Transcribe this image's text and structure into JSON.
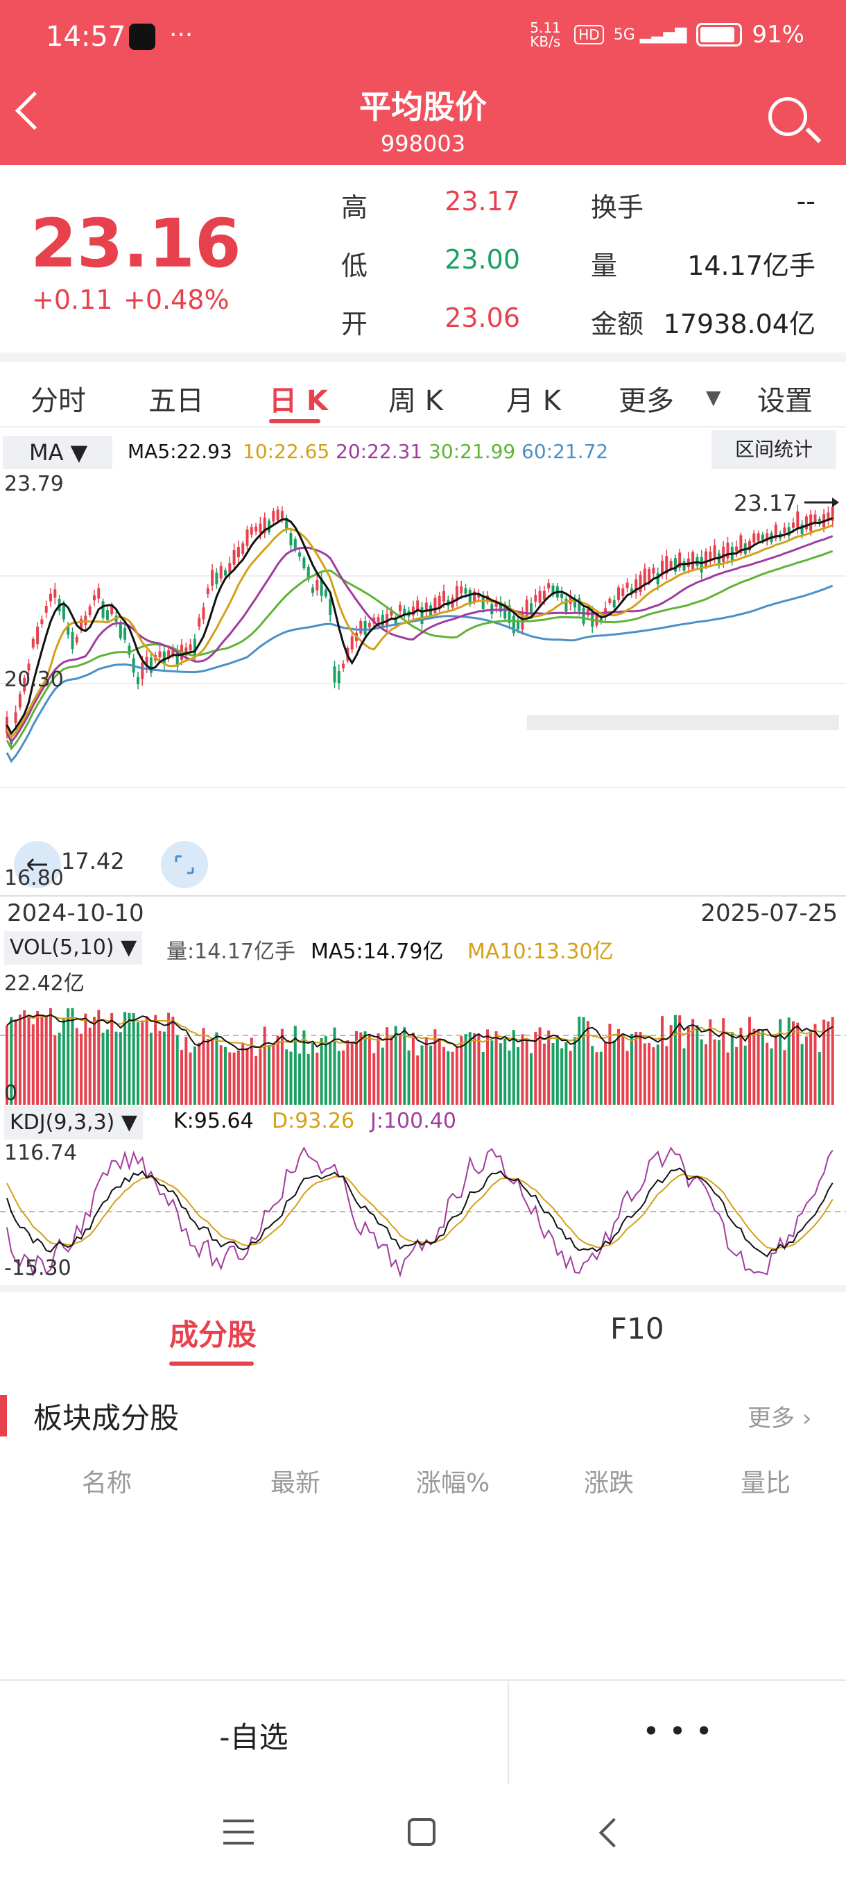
{
  "status": {
    "time": "14:57",
    "net": "5.11 KB/s",
    "hd": "HD",
    "signal": "5G",
    "battery": "91%"
  },
  "header": {
    "title": "平均股价",
    "code": "998003"
  },
  "quote": {
    "price": "23.16",
    "change": "+0.11",
    "change_pct": "+0.48%",
    "labels": {
      "high": "高",
      "low": "低",
      "open": "开",
      "turnover": "换手",
      "volume": "量",
      "amount": "金额"
    },
    "high": "23.17",
    "low": "23.00",
    "open": "23.06",
    "turnover": "--",
    "volume": "14.17亿手",
    "amount": "17938.04亿"
  },
  "tabs": [
    "分时",
    "五日",
    "日 K",
    "周 K",
    "月 K",
    "更多",
    "设置"
  ],
  "ma_legend": {
    "selector": "MA",
    "ma5": "MA5:22.93",
    "ma10": "10:22.65",
    "ma20": "20:22.31",
    "ma30": "30:21.99",
    "ma60": "60:21.72",
    "stats_button": "区间统计"
  },
  "price_axis": {
    "top": "23.79",
    "mid": "20.30",
    "bottom": "16.80",
    "last_label": "23.17",
    "low_label": "17.42"
  },
  "dates": {
    "start": "2024-10-10",
    "end": "2025-07-25"
  },
  "vol": {
    "selector": "VOL(5,10)",
    "vol": "量:14.17亿手",
    "ma5": "MA5:14.79亿",
    "ma10": "MA10:13.30亿",
    "top": "22.42亿",
    "zero": "0"
  },
  "kdj": {
    "selector": "KDJ(9,3,3)",
    "k": "K:95.64",
    "d": "D:93.26",
    "j": "J:100.40",
    "top": "116.74",
    "bottom": "-15.30"
  },
  "section_tabs": [
    "成分股",
    "F10"
  ],
  "section": {
    "title": "板块成分股",
    "more": "更多"
  },
  "columns": [
    "名称",
    "最新",
    "涨幅%",
    "涨跌",
    "量比"
  ],
  "bottom": {
    "watch": "-自选",
    "more": "• • •"
  },
  "colors": {
    "brand": "#f0515c",
    "up": "#e8414e",
    "down": "#1aa063",
    "ma5": "#111111",
    "ma10": "#d4a017",
    "ma20": "#a23b9e",
    "ma30": "#5fb336",
    "ma60": "#4a90c8"
  }
}
